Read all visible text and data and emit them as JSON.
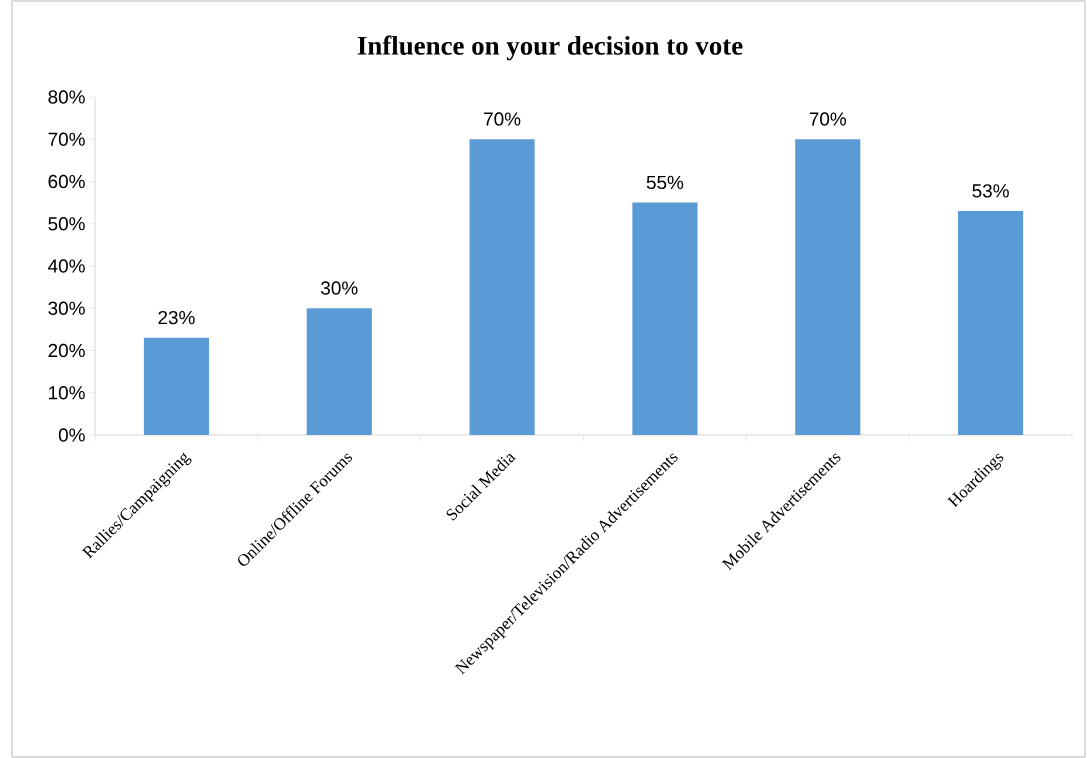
{
  "chart_data": {
    "type": "bar",
    "title": "Influence on your decision to vote",
    "categories": [
      "Rallies/Campaigning",
      "Online/Offline Forums",
      "Social Media",
      "Newspaper/Television/Radio Advertisements",
      "Mobile Advertisements",
      "Hoardings"
    ],
    "values": [
      23,
      30,
      70,
      55,
      70,
      53
    ],
    "value_labels": [
      "23%",
      "30%",
      "70%",
      "55%",
      "70%",
      "53%"
    ],
    "color": "#5b9bd5",
    "ylim": [
      0,
      80
    ],
    "yticks": [
      {
        "value": 0,
        "label": "0%"
      },
      {
        "value": 10,
        "label": "10%"
      },
      {
        "value": 20,
        "label": "20%"
      },
      {
        "value": 30,
        "label": "30%"
      },
      {
        "value": 40,
        "label": "40%"
      },
      {
        "value": 50,
        "label": "50%"
      },
      {
        "value": 60,
        "label": "60%"
      },
      {
        "value": 70,
        "label": "70%"
      },
      {
        "value": 80,
        "label": "80%"
      }
    ],
    "grid": false
  }
}
